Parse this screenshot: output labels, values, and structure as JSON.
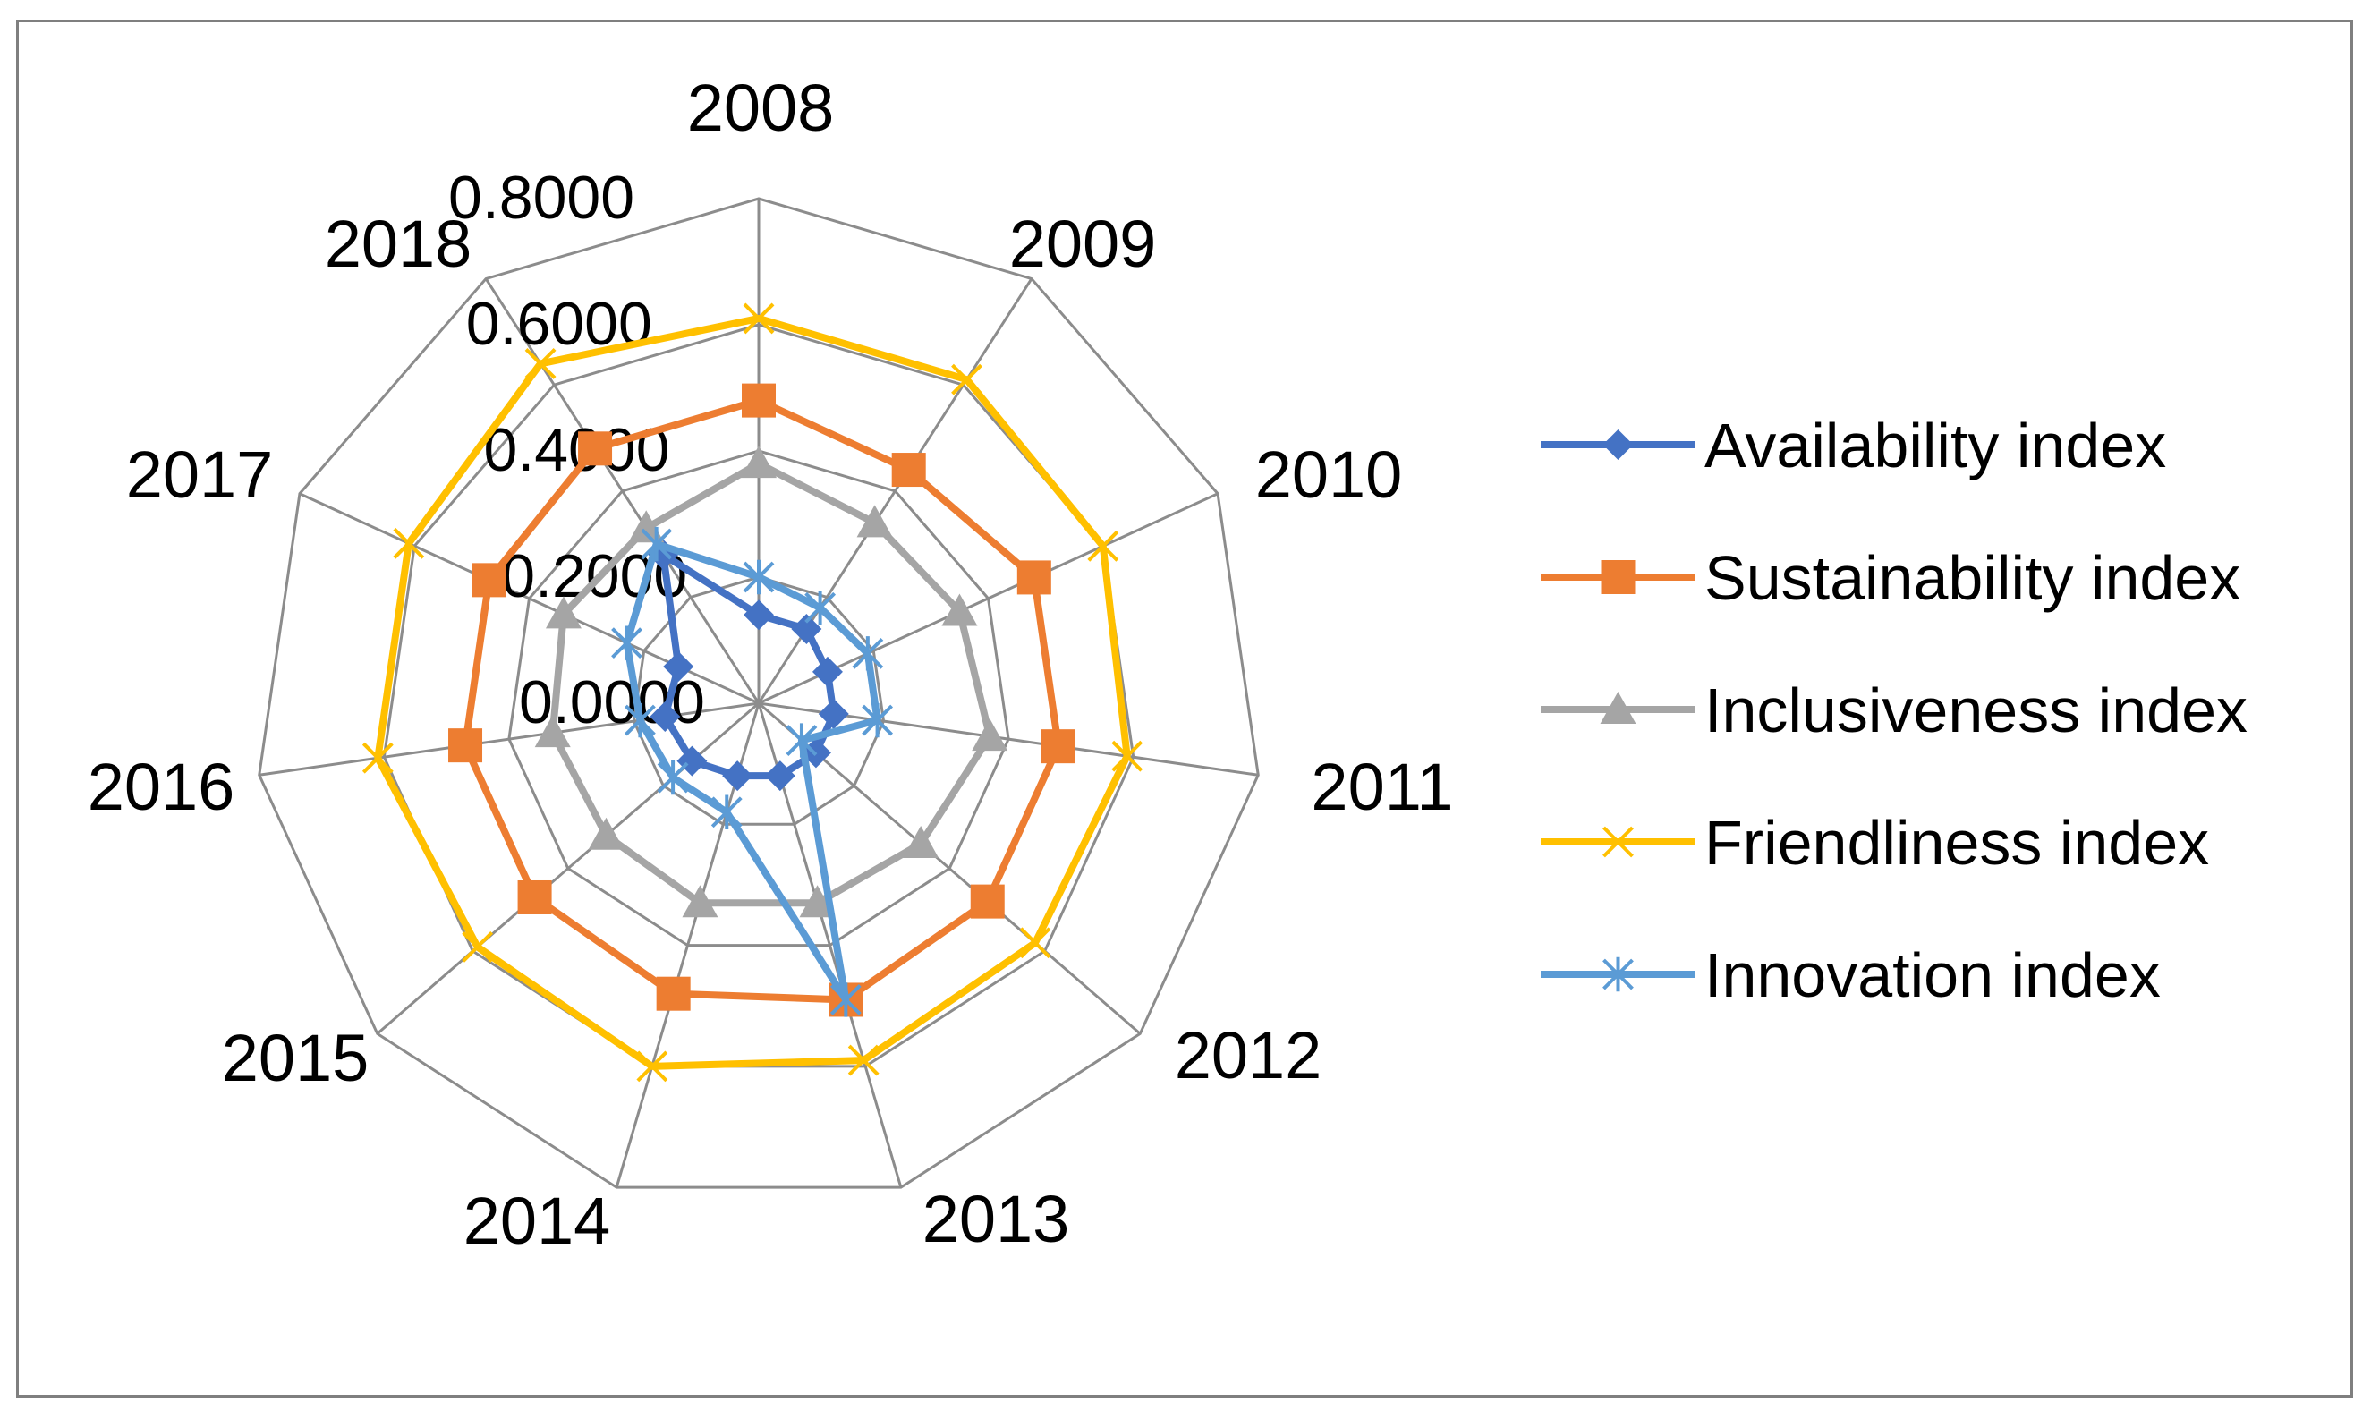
{
  "chart_data": {
    "type": "radar",
    "title": "",
    "categories": [
      "2008",
      "2009",
      "2010",
      "2011",
      "2012",
      "2013",
      "2014",
      "2015",
      "2016",
      "2017",
      "2018"
    ],
    "rlim": [
      0,
      0.8
    ],
    "ticks": [
      "0.0000",
      "0.2000",
      "0.4000",
      "0.6000",
      "0.8000"
    ],
    "tick_values": [
      0,
      0.2,
      0.4,
      0.6,
      0.8
    ],
    "gridlines": true,
    "legend_position": "right",
    "series": [
      {
        "name": "Availability index",
        "color": "#4472C4",
        "marker": "diamond",
        "values": [
          0.14,
          0.14,
          0.12,
          0.12,
          0.12,
          0.12,
          0.12,
          0.14,
          0.15,
          0.14,
          0.28
        ]
      },
      {
        "name": "Sustainability index",
        "color": "#ED7D31",
        "marker": "square",
        "values": [
          0.48,
          0.44,
          0.48,
          0.48,
          0.48,
          0.49,
          0.48,
          0.47,
          0.47,
          0.47,
          0.48
        ]
      },
      {
        "name": "Inclusiveness index",
        "color": "#A5A5A5",
        "marker": "triangle",
        "values": [
          0.38,
          0.34,
          0.35,
          0.37,
          0.34,
          0.33,
          0.33,
          0.32,
          0.33,
          0.34,
          0.33
        ]
      },
      {
        "name": "Friendliness index",
        "color": "#FFC000",
        "marker": "x",
        "values": [
          0.61,
          0.61,
          0.6,
          0.59,
          0.58,
          0.59,
          0.6,
          0.59,
          0.61,
          0.61,
          0.64
        ]
      },
      {
        "name": "Innovation index",
        "color": "#5B9BD5",
        "marker": "star",
        "values": [
          0.2,
          0.18,
          0.19,
          0.19,
          0.09,
          0.49,
          0.18,
          0.18,
          0.19,
          0.23,
          0.3
        ]
      }
    ]
  }
}
